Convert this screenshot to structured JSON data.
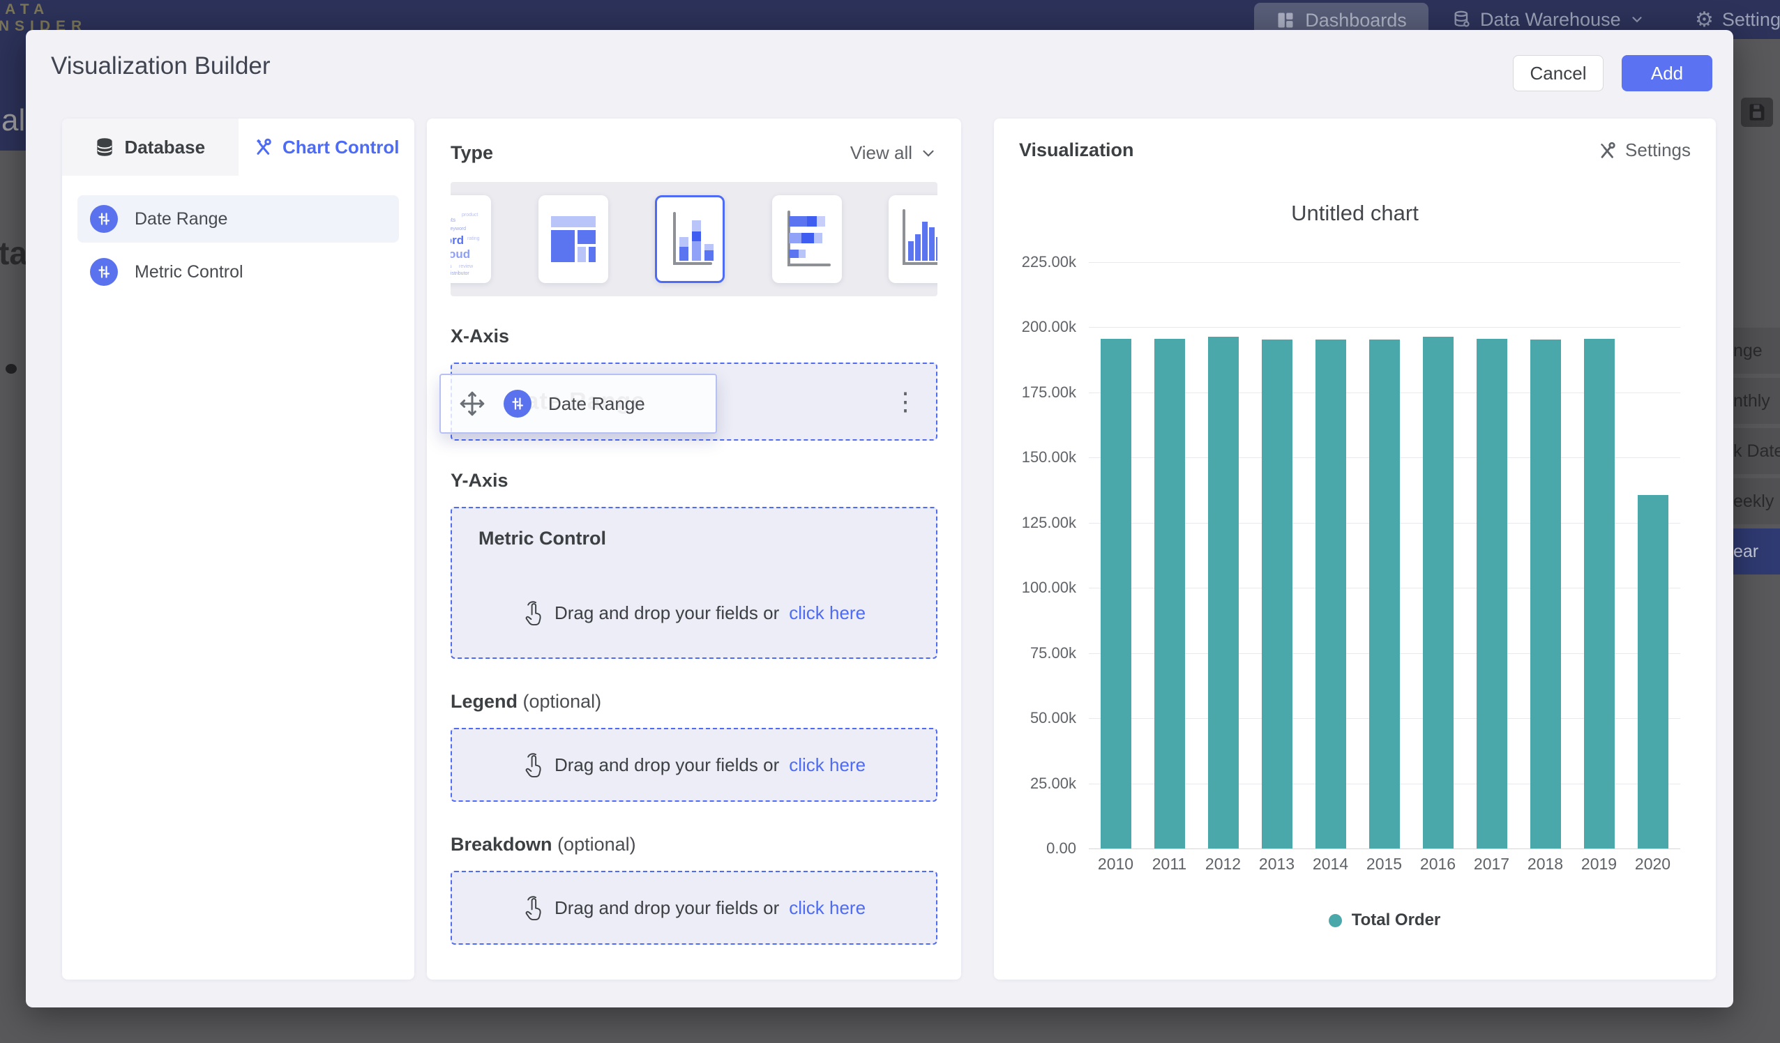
{
  "colors": {
    "accent_blue": "#4d6bf5",
    "add_button_blue": "#5b73f2",
    "bar_teal": "#4aa8ab",
    "nav_navy": "#2c3259",
    "modal_bg": "#f1f1f6"
  },
  "background": {
    "logo_line1": "DATA",
    "logo_line2": "INSIDER",
    "nav": {
      "dashboards": "Dashboards",
      "data_warehouse": "Data Warehouse",
      "settings": "Settings"
    },
    "left_fragment_1": "al",
    "left_fragment_2": "ta",
    "dropdown": {
      "items": [
        {
          "label": "nge",
          "selected": false
        },
        {
          "label": "nthly",
          "selected": false
        },
        {
          "label": "k Date",
          "selected": false
        },
        {
          "label": "eekly",
          "selected": false
        },
        {
          "label": "ear",
          "selected": true
        }
      ]
    }
  },
  "modal": {
    "title": "Visualization Builder",
    "cancel_label": "Cancel",
    "add_label": "Add",
    "left_panel": {
      "tabs": [
        {
          "label": "Database",
          "active": false
        },
        {
          "label": "Chart Control",
          "active": true
        }
      ],
      "fields": [
        {
          "label": "Date Range",
          "highlighted": true
        },
        {
          "label": "Metric Control",
          "highlighted": false
        }
      ]
    },
    "middle_panel": {
      "type_label": "Type",
      "view_all_label": "View all",
      "chart_types": [
        "word-cloud",
        "treemap",
        "stacked-column",
        "stacked-bar",
        "histogram"
      ],
      "selected_type_index": 2,
      "x_axis": {
        "label": "X-Axis",
        "field": "Date Range",
        "ghost_text": "Date Range"
      },
      "y_axis": {
        "label": "Y-Axis",
        "zone_title": "Metric Control",
        "drop_text": "Drag and drop your fields or",
        "drop_link": "click here"
      },
      "legend_section": {
        "label": "Legend",
        "optional": "(optional)",
        "drop_text": "Drag and drop your fields or",
        "drop_link": "click here"
      },
      "breakdown_section": {
        "label": "Breakdown",
        "optional": "(optional)",
        "drop_text": "Drag and drop your fields or",
        "drop_link": "click here"
      }
    },
    "right_panel": {
      "header": "Visualization",
      "settings_label": "Settings"
    }
  },
  "chart_data": {
    "type": "bar",
    "title": "Untitled chart",
    "categories": [
      "2010",
      "2011",
      "2012",
      "2013",
      "2014",
      "2015",
      "2016",
      "2017",
      "2018",
      "2019",
      "2020"
    ],
    "series": [
      {
        "name": "Total Order",
        "values": [
          195500,
          195500,
          196300,
          195400,
          195400,
          195300,
          196400,
          195600,
          195300,
          195500,
          135600
        ]
      }
    ],
    "y_ticks": [
      "225.00k",
      "200.00k",
      "175.00k",
      "150.00k",
      "125.00k",
      "100.00k",
      "75.00k",
      "50.00k",
      "25.00k",
      "0.00"
    ],
    "ylim": [
      0,
      225000
    ],
    "xlabel": "",
    "ylabel": "",
    "grid": true,
    "legend_position": "bottom",
    "bar_color": "#4aa8ab"
  }
}
